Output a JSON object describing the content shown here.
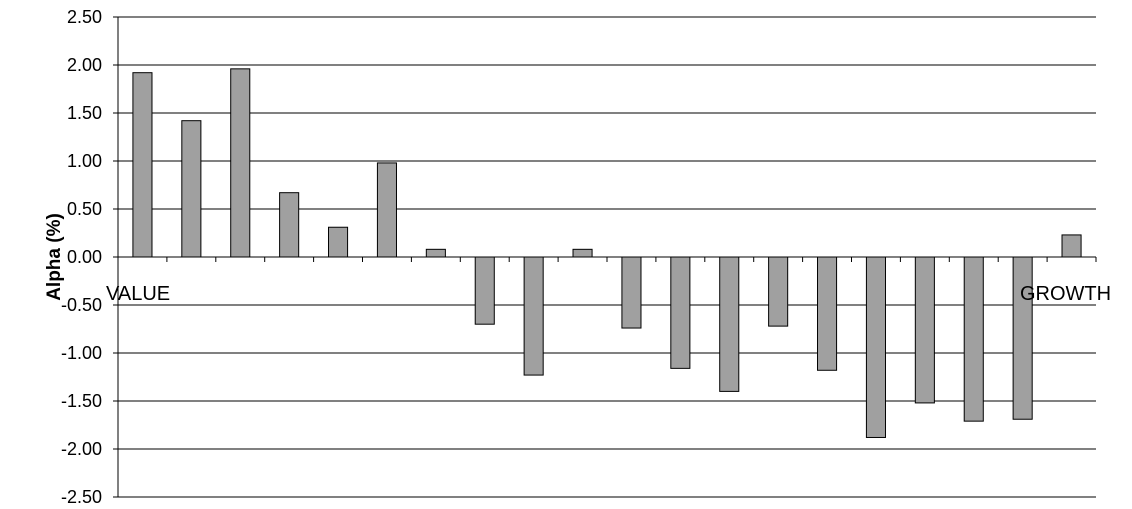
{
  "chart_data": {
    "type": "bar",
    "title": "",
    "xlabel": "",
    "ylabel": "Alpha (%)",
    "ylim": [
      -2.5,
      2.5
    ],
    "ytick_labels": [
      "2.50",
      "2.00",
      "1.50",
      "1.00",
      "0.50",
      "0.00",
      "-0.50",
      "-1.00",
      "-1.50",
      "-2.00",
      "-2.50"
    ],
    "grid": true,
    "legend": "none",
    "bar_color": "#a0a0a0",
    "bar_edge_color": "#000000",
    "annotations": {
      "left": "VALUE",
      "right": "GROWTH"
    },
    "values": [
      1.92,
      1.42,
      1.96,
      0.67,
      0.31,
      0.98,
      0.08,
      -0.7,
      -1.23,
      0.08,
      -0.74,
      -1.16,
      -1.4,
      -0.72,
      -1.18,
      -1.88,
      -1.52,
      -1.71,
      -1.69,
      0.23
    ]
  }
}
